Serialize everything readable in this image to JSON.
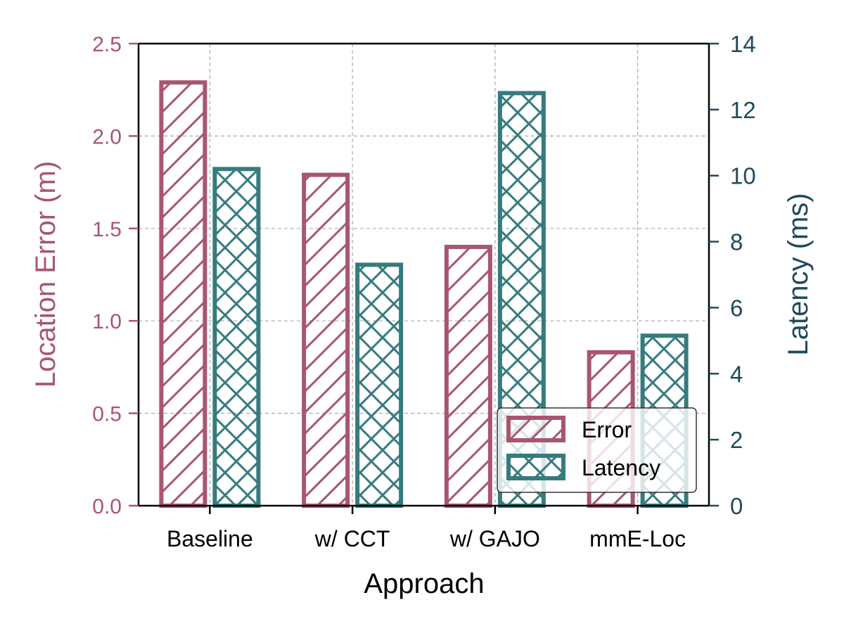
{
  "chart_data": {
    "type": "bar",
    "xlabel": "Approach",
    "categories": [
      "Baseline",
      "w/ CCT",
      "w/ GAJO",
      "mmE-Loc"
    ],
    "series": [
      {
        "name": "Error",
        "axis": "left",
        "hatch": "diagonal",
        "color": "#A8566E",
        "values": [
          2.29,
          1.79,
          1.4,
          0.83
        ]
      },
      {
        "name": "Latency",
        "axis": "right",
        "hatch": "crosshatch",
        "color": "#367B7E",
        "values": [
          10.2,
          7.3,
          12.5,
          5.15
        ]
      }
    ],
    "left_axis": {
      "label": "Location Error (m)",
      "ylim": [
        0,
        2.5
      ],
      "ticks": [
        "0.0",
        "0.5",
        "1.0",
        "1.5",
        "2.0",
        "2.5"
      ],
      "color": "#A8566E"
    },
    "right_axis": {
      "label": "Latency (ms)",
      "ylim": [
        0,
        14
      ],
      "ticks": [
        "0",
        "2",
        "4",
        "6",
        "8",
        "10",
        "12",
        "14"
      ],
      "color": "#1F4A5C"
    },
    "grid": true,
    "legend": {
      "position": "lower-right",
      "entries": [
        "Error",
        "Latency"
      ]
    }
  }
}
